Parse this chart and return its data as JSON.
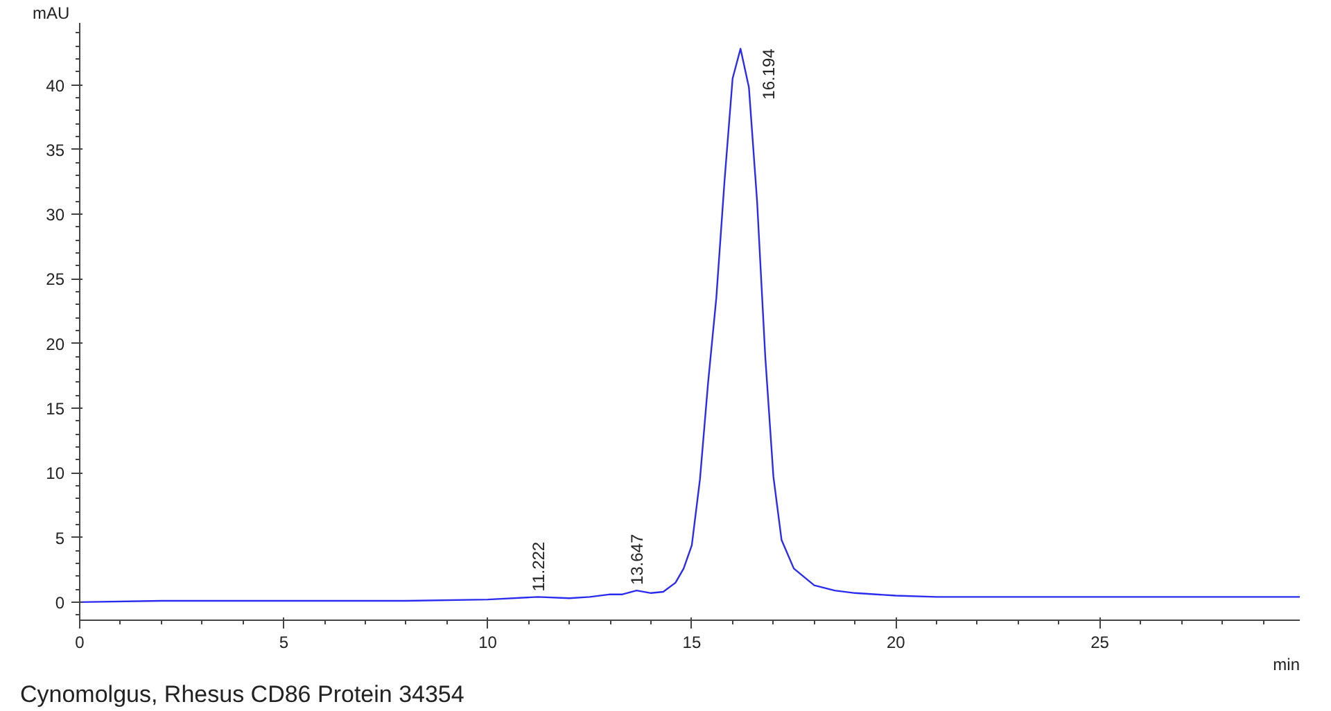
{
  "chart_data": {
    "type": "line",
    "xlabel": "min",
    "ylabel": "mAU",
    "x": [
      0,
      2,
      4,
      6,
      8,
      10,
      11.222,
      12,
      12.5,
      13,
      13.3,
      13.647,
      14.0,
      14.3,
      14.6,
      14.8,
      15.0,
      15.2,
      15.4,
      15.6,
      15.8,
      16.0,
      16.194,
      16.4,
      16.6,
      16.8,
      17.0,
      17.2,
      17.5,
      18.0,
      18.5,
      19,
      20,
      21,
      25,
      29.9
    ],
    "series": [
      {
        "color": "#2b2bf0",
        "values": [
          0.0,
          0.1,
          0.1,
          0.1,
          0.1,
          0.2,
          0.4,
          0.3,
          0.4,
          0.6,
          0.6,
          0.9,
          0.7,
          0.8,
          1.5,
          2.6,
          4.4,
          9.5,
          17,
          23.5,
          32.5,
          40.5,
          42.8,
          39.8,
          31,
          19,
          9.7,
          4.8,
          2.6,
          1.3,
          0.9,
          0.7,
          0.5,
          0.4,
          0.4,
          0.4
        ]
      }
    ],
    "xlim": [
      0,
      29.9
    ],
    "ylim": [
      -1.4,
      44.8
    ],
    "xticks": [
      0,
      5,
      10,
      15,
      20,
      25
    ],
    "yticks": [
      0,
      5,
      10,
      15,
      20,
      25,
      30,
      35,
      40
    ],
    "grid": false,
    "legend": false,
    "marker": "none",
    "line_style": "solid",
    "annotations": [
      {
        "text": "11.222",
        "x": 11.222,
        "y": 0.4
      },
      {
        "text": "13.647",
        "x": 13.647,
        "y": 0.9
      },
      {
        "text": "16.194",
        "x": 16.194,
        "y": 42.8
      },
      "Cynomolgus, Rhesus CD86 Protein 34354"
    ]
  }
}
